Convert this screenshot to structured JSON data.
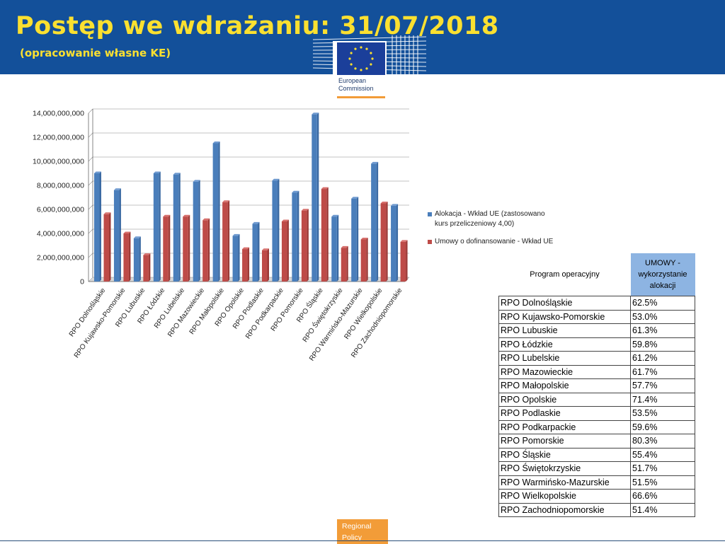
{
  "header": {
    "title": "Postęp we wdrażaniu: 31/07/2018",
    "subtitle": "(opracowanie własne KE)"
  },
  "logo": {
    "line1": "European",
    "line2": "Commission"
  },
  "colors": {
    "header_bg": "#13509a",
    "title": "#fbe030",
    "series1": "#4a7ebb",
    "series2": "#be4b48",
    "accent": "#f29c38",
    "table_header": "#8db4e2"
  },
  "chart_data": {
    "type": "bar",
    "categories": [
      "RPO Dolnośląskie",
      "RPO Kujawsko-Pomorskie",
      "RPO Lubuskie",
      "RPO Łódzkie",
      "RPO Lubelskie",
      "RPO Mazowieckie",
      "RPO Małopolskie",
      "RPO Opolskie",
      "RPO Podlaskie",
      "RPO Podkarpackie",
      "RPO Pomorskie",
      "RPO  Śląskie",
      "RPO Świętokrzyskie",
      "RPO Warmińsko-Mazurskie",
      "RPO Wielkopolskie",
      "RPO Zachodniopomorskie"
    ],
    "series": [
      {
        "name": "Alokacja - Wkład UE (zastosowano kurs przeliczeniowy 4,00)",
        "values": [
          9000000000,
          7600000000,
          3600000000,
          9000000000,
          8900000000,
          8300000000,
          11500000000,
          3800000000,
          4800000000,
          8400000000,
          7400000000,
          13900000000,
          5400000000,
          6900000000,
          9800000000,
          6300000000
        ]
      },
      {
        "name": "Umowy o dofinansowanie - Wkład UE",
        "values": [
          5600000000,
          4000000000,
          2200000000,
          5400000000,
          5400000000,
          5100000000,
          6600000000,
          2700000000,
          2600000000,
          5000000000,
          5900000000,
          7700000000,
          2800000000,
          3500000000,
          6500000000,
          3300000000
        ]
      }
    ],
    "yticks": [
      "0",
      "2,000,000,000",
      "4,000,000,000",
      "6,000,000,000",
      "8,000,000,000",
      "10,000,000,000",
      "12,000,000,000",
      "14,000,000,000"
    ],
    "ylim": [
      0,
      14000000000
    ],
    "grid": true,
    "legend": "right"
  },
  "table": {
    "header_program": "Program operacyjny",
    "header_umowy": "UMOWY - wykorzystanie alokacji",
    "rows": [
      {
        "program": "RPO Dolnośląskie",
        "pct": "62.5%"
      },
      {
        "program": "RPO Kujawsko-Pomorskie",
        "pct": "53.0%"
      },
      {
        "program": "RPO Lubuskie",
        "pct": "61.3%"
      },
      {
        "program": "RPO Łódzkie",
        "pct": "59.8%"
      },
      {
        "program": "RPO Lubelskie",
        "pct": "61.2%"
      },
      {
        "program": "RPO Mazowieckie",
        "pct": "61.7%"
      },
      {
        "program": "RPO Małopolskie",
        "pct": "57.7%"
      },
      {
        "program": "RPO Opolskie",
        "pct": "71.4%"
      },
      {
        "program": "RPO Podlaskie",
        "pct": "53.5%"
      },
      {
        "program": "RPO Podkarpackie",
        "pct": "59.6%"
      },
      {
        "program": "RPO Pomorskie",
        "pct": "80.3%"
      },
      {
        "program": "RPO  Śląskie",
        "pct": "55.4%"
      },
      {
        "program": "RPO Świętokrzyskie",
        "pct": "51.7%"
      },
      {
        "program": "RPO Warmińsko-Mazurskie",
        "pct": "51.5%"
      },
      {
        "program": "RPO Wielkopolskie",
        "pct": "66.6%"
      },
      {
        "program": "RPO Zachodniopomorskie",
        "pct": "51.4%"
      }
    ]
  },
  "footer": {
    "line1": "Regional",
    "line2": "Policy"
  }
}
